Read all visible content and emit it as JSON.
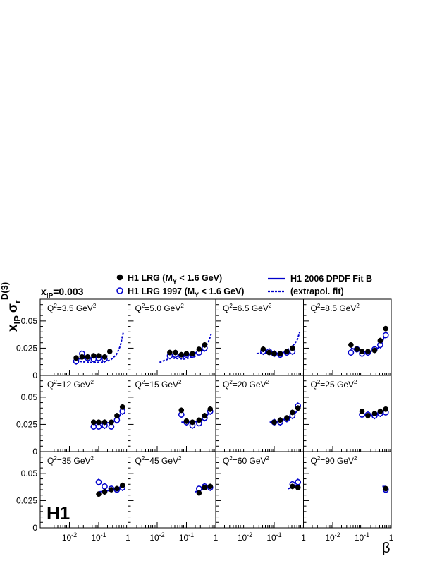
{
  "header": {
    "xip_label": "x",
    "xip_sub": "IP",
    "xip_value": "=0.003",
    "ylabel_main": "x",
    "ylabel_sub": "IP",
    "ylabel_sigma": "σ",
    "ylabel_r": "r",
    "ylabel_sup": "D(3)",
    "xlabel": "β",
    "logo": "H1"
  },
  "legend": {
    "lrg_main": "H1 LRG (M",
    "lrg_sub": "Y",
    "lrg_tail": " < 1.6 GeV)",
    "lrg97_main": "H1 LRG 1997 (M",
    "lrg97_sub": "Y",
    "lrg97_tail": " < 1.6 GeV)",
    "fit_label": "H1 2006 DPDF Fit B",
    "extrap_label": "(extrapol. fit)"
  },
  "colors": {
    "fit": "#0000cc",
    "open_marker": "#0000cc",
    "filled_marker": "#000000",
    "axis": "#000000"
  },
  "chart_data": {
    "type": "scatter",
    "layout": "grid 3 rows x 4 columns, shared axes",
    "x_scale": "log",
    "xlim": [
      0.001,
      1
    ],
    "ylim": [
      0,
      0.07
    ],
    "yticks": [
      0,
      0.025,
      0.05
    ],
    "ytick_labels": [
      "0",
      "0.025",
      "0.05"
    ],
    "xtick_labels": [
      {
        "base": "10",
        "exp": "-2",
        "v": 0.01
      },
      {
        "base": "10",
        "exp": "-1",
        "v": 0.1
      },
      {
        "base": "1",
        "exp": "",
        "v": 1
      }
    ],
    "panels": [
      {
        "q2": "3.5",
        "label_pre": "Q",
        "label_sup": "2",
        "label_post": "=3.5 GeV",
        "label_sup2": "2",
        "lrg": [
          [
            0.017,
            0.016
          ],
          [
            0.027,
            0.017
          ],
          [
            0.042,
            0.017
          ],
          [
            0.067,
            0.018
          ],
          [
            0.1,
            0.018
          ],
          [
            0.16,
            0.017
          ],
          [
            0.24,
            0.022
          ]
        ],
        "lrg97": [
          [
            0.017,
            0.013
          ],
          [
            0.027,
            0.02
          ],
          [
            0.042,
            0.016
          ],
          [
            0.067,
            0.015
          ],
          [
            0.1,
            0.016
          ],
          [
            0.16,
            0.015
          ]
        ],
        "fit": [
          [
            0.017,
            0.015
          ],
          [
            0.05,
            0.016
          ],
          [
            0.1,
            0.016
          ],
          [
            0.2,
            0.018
          ]
        ],
        "extrap": [
          [
            0.017,
            0.013
          ],
          [
            0.05,
            0.012
          ],
          [
            0.12,
            0.012
          ],
          [
            0.25,
            0.014
          ],
          [
            0.4,
            0.019
          ],
          [
            0.55,
            0.027
          ],
          [
            0.7,
            0.04
          ]
        ]
      },
      {
        "q2": "5.0",
        "label_pre": "Q",
        "label_sup": "2",
        "label_post": "=5.0 GeV",
        "label_sup2": "2",
        "lrg": [
          [
            0.027,
            0.021
          ],
          [
            0.042,
            0.021
          ],
          [
            0.067,
            0.019
          ],
          [
            0.1,
            0.02
          ],
          [
            0.16,
            0.02
          ],
          [
            0.27,
            0.024
          ],
          [
            0.42,
            0.028
          ]
        ],
        "lrg97": [
          [
            0.027,
            0.018
          ],
          [
            0.042,
            0.019
          ],
          [
            0.067,
            0.018
          ],
          [
            0.1,
            0.019
          ],
          [
            0.16,
            0.019
          ],
          [
            0.27,
            0.021
          ],
          [
            0.42,
            0.025
          ]
        ],
        "fit": [
          [
            0.027,
            0.019
          ],
          [
            0.08,
            0.019
          ],
          [
            0.16,
            0.02
          ],
          [
            0.3,
            0.022
          ],
          [
            0.42,
            0.026
          ]
        ],
        "extrap": [
          [
            0.012,
            0.012
          ],
          [
            0.03,
            0.016
          ],
          [
            0.08,
            0.015
          ],
          [
            0.18,
            0.017
          ],
          [
            0.35,
            0.022
          ],
          [
            0.55,
            0.03
          ],
          [
            0.7,
            0.038
          ]
        ]
      },
      {
        "q2": "6.5",
        "label_pre": "Q",
        "label_sup": "2",
        "label_post": "=6.5 GeV",
        "label_sup2": "2",
        "lrg": [
          [
            0.042,
            0.024
          ],
          [
            0.067,
            0.021
          ],
          [
            0.1,
            0.02
          ],
          [
            0.16,
            0.02
          ],
          [
            0.27,
            0.022
          ],
          [
            0.42,
            0.025
          ]
        ],
        "lrg97": [
          [
            0.042,
            0.022
          ],
          [
            0.067,
            0.022
          ],
          [
            0.1,
            0.02
          ],
          [
            0.16,
            0.019
          ],
          [
            0.27,
            0.021
          ],
          [
            0.42,
            0.022
          ]
        ],
        "fit": [
          [
            0.04,
            0.021
          ],
          [
            0.1,
            0.02
          ],
          [
            0.2,
            0.021
          ],
          [
            0.42,
            0.023
          ]
        ],
        "extrap": [
          [
            0.025,
            0.02
          ],
          [
            0.05,
            0.021
          ],
          [
            0.1,
            0.02
          ],
          [
            0.2,
            0.021
          ],
          [
            0.4,
            0.026
          ],
          [
            0.6,
            0.032
          ],
          [
            0.75,
            0.04
          ]
        ]
      },
      {
        "q2": "8.5",
        "label_pre": "Q",
        "label_sup": "2",
        "label_post": "=8.5 GeV",
        "label_sup2": "2",
        "lrg": [
          [
            0.042,
            0.028
          ],
          [
            0.067,
            0.024
          ],
          [
            0.1,
            0.022
          ],
          [
            0.16,
            0.022
          ],
          [
            0.27,
            0.023
          ],
          [
            0.42,
            0.032
          ],
          [
            0.65,
            0.043
          ]
        ],
        "lrg97": [
          [
            0.042,
            0.021
          ],
          [
            0.067,
            0.024
          ],
          [
            0.1,
            0.02
          ],
          [
            0.16,
            0.021
          ],
          [
            0.27,
            0.024
          ],
          [
            0.42,
            0.028
          ],
          [
            0.65,
            0.037
          ]
        ],
        "fit": [
          [
            0.042,
            0.025
          ],
          [
            0.1,
            0.022
          ],
          [
            0.2,
            0.022
          ],
          [
            0.35,
            0.025
          ],
          [
            0.5,
            0.031
          ],
          [
            0.65,
            0.039
          ]
        ],
        "extrap": []
      },
      {
        "q2": "12",
        "label_pre": "Q",
        "label_sup": "2",
        "label_post": "=12 GeV",
        "label_sup2": "2",
        "lrg": [
          [
            0.067,
            0.027
          ],
          [
            0.1,
            0.027
          ],
          [
            0.16,
            0.027
          ],
          [
            0.27,
            0.027
          ],
          [
            0.42,
            0.033
          ],
          [
            0.65,
            0.041
          ]
        ],
        "lrg97": [
          [
            0.067,
            0.023
          ],
          [
            0.1,
            0.023
          ],
          [
            0.16,
            0.024
          ],
          [
            0.27,
            0.023
          ],
          [
            0.42,
            0.029
          ],
          [
            0.65,
            0.037
          ]
        ],
        "fit": [
          [
            0.067,
            0.026
          ],
          [
            0.15,
            0.026
          ],
          [
            0.3,
            0.027
          ],
          [
            0.5,
            0.032
          ],
          [
            0.7,
            0.039
          ]
        ],
        "extrap": []
      },
      {
        "q2": "15",
        "label_pre": "Q",
        "label_sup": "2",
        "label_post": "=15 GeV",
        "label_sup2": "2",
        "lrg": [
          [
            0.067,
            0.038
          ],
          [
            0.1,
            0.028
          ],
          [
            0.16,
            0.027
          ],
          [
            0.27,
            0.029
          ],
          [
            0.42,
            0.033
          ],
          [
            0.65,
            0.039
          ]
        ],
        "lrg97": [
          [
            0.067,
            0.034
          ],
          [
            0.1,
            0.027
          ],
          [
            0.16,
            0.024
          ],
          [
            0.27,
            0.026
          ],
          [
            0.42,
            0.031
          ],
          [
            0.65,
            0.037
          ]
        ],
        "fit": [
          [
            0.067,
            0.027
          ],
          [
            0.15,
            0.027
          ],
          [
            0.3,
            0.028
          ],
          [
            0.5,
            0.033
          ],
          [
            0.7,
            0.039
          ]
        ],
        "extrap": []
      },
      {
        "q2": "20",
        "label_pre": "Q",
        "label_sup": "2",
        "label_post": "=20 GeV",
        "label_sup2": "2",
        "lrg": [
          [
            0.1,
            0.027
          ],
          [
            0.16,
            0.029
          ],
          [
            0.27,
            0.031
          ],
          [
            0.42,
            0.036
          ],
          [
            0.65,
            0.04
          ]
        ],
        "lrg97": [
          [
            0.1,
            0.027
          ],
          [
            0.16,
            0.027
          ],
          [
            0.27,
            0.03
          ],
          [
            0.42,
            0.033
          ],
          [
            0.65,
            0.042
          ]
        ],
        "fit": [
          [
            0.07,
            0.027
          ],
          [
            0.15,
            0.028
          ],
          [
            0.3,
            0.031
          ],
          [
            0.5,
            0.035
          ],
          [
            0.7,
            0.039
          ]
        ],
        "extrap": []
      },
      {
        "q2": "25",
        "label_pre": "Q",
        "label_sup": "2",
        "label_post": "=25 GeV",
        "label_sup2": "2",
        "lrg": [
          [
            0.1,
            0.037
          ],
          [
            0.16,
            0.033
          ],
          [
            0.27,
            0.035
          ],
          [
            0.42,
            0.037
          ],
          [
            0.65,
            0.039
          ]
        ],
        "lrg97": [
          [
            0.1,
            0.034
          ],
          [
            0.16,
            0.034
          ],
          [
            0.27,
            0.033
          ],
          [
            0.42,
            0.035
          ],
          [
            0.65,
            0.036
          ]
        ],
        "fit": [
          [
            0.1,
            0.033
          ],
          [
            0.2,
            0.033
          ],
          [
            0.4,
            0.035
          ],
          [
            0.65,
            0.037
          ]
        ],
        "extrap": []
      },
      {
        "q2": "35",
        "label_pre": "Q",
        "label_sup": "2",
        "label_post": "=35 GeV",
        "label_sup2": "2",
        "lrg": [
          [
            0.1,
            0.031
          ],
          [
            0.16,
            0.033
          ],
          [
            0.27,
            0.035
          ],
          [
            0.42,
            0.036
          ],
          [
            0.65,
            0.039
          ]
        ],
        "lrg97": [
          [
            0.1,
            0.042
          ],
          [
            0.16,
            0.038
          ],
          [
            0.27,
            0.036
          ],
          [
            0.42,
            0.035
          ],
          [
            0.65,
            0.037
          ]
        ],
        "fit": [
          [
            0.1,
            0.033
          ],
          [
            0.2,
            0.034
          ],
          [
            0.4,
            0.036
          ],
          [
            0.65,
            0.038
          ]
        ],
        "extrap": []
      },
      {
        "q2": "45",
        "label_pre": "Q",
        "label_sup": "2",
        "label_post": "=45 GeV",
        "label_sup2": "2",
        "lrg": [
          [
            0.27,
            0.032
          ],
          [
            0.42,
            0.037
          ],
          [
            0.65,
            0.038
          ]
        ],
        "lrg97": [
          [
            0.27,
            0.036
          ],
          [
            0.42,
            0.038
          ],
          [
            0.65,
            0.037
          ]
        ],
        "fit": [
          [
            0.2,
            0.033
          ],
          [
            0.4,
            0.036
          ],
          [
            0.65,
            0.038
          ]
        ],
        "extrap": []
      },
      {
        "q2": "60",
        "label_pre": "Q",
        "label_sup": "2",
        "label_post": "=60 GeV",
        "label_sup2": "2",
        "lrg": [
          [
            0.42,
            0.038
          ],
          [
            0.65,
            0.037
          ]
        ],
        "lrg97": [
          [
            0.42,
            0.04
          ],
          [
            0.65,
            0.042
          ]
        ],
        "fit": [
          [
            0.3,
            0.036
          ],
          [
            0.5,
            0.038
          ],
          [
            0.65,
            0.039
          ]
        ],
        "extrap": []
      },
      {
        "q2": "90",
        "label_pre": "Q",
        "label_sup": "2",
        "label_post": "=90 GeV",
        "label_sup2": "2",
        "lrg": [
          [
            0.65,
            0.036
          ]
        ],
        "lrg97": [
          [
            0.65,
            0.035
          ]
        ],
        "fit": [
          [
            0.5,
            0.038
          ],
          [
            0.65,
            0.038
          ]
        ],
        "extrap": []
      }
    ]
  }
}
